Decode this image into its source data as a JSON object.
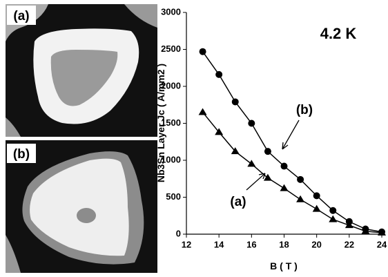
{
  "panels": [
    "(a)",
    "(b)"
  ],
  "chart_data": {
    "type": "line",
    "x_label": "B ( T )",
    "y_label": "Nb3Sn Layer Jc ( A/mm2 )",
    "annotations": [
      "4.2 K",
      "(b)",
      "(a)"
    ],
    "xlim": [
      12,
      24
    ],
    "xticks": [
      12,
      14,
      16,
      18,
      20,
      22,
      24
    ],
    "ylim": [
      0,
      3000
    ],
    "yticks": [
      0,
      500,
      1000,
      1500,
      2000,
      2500,
      3000
    ],
    "x": [
      13,
      14,
      15,
      16,
      17,
      18,
      19,
      20,
      21,
      22,
      23,
      24
    ],
    "series": [
      {
        "name": "(b)",
        "color": "#000000",
        "marker": "circle",
        "values": [
          2470,
          2160,
          1790,
          1500,
          1120,
          920,
          740,
          520,
          320,
          170,
          70,
          30
        ]
      },
      {
        "name": "(a)",
        "color": "#000000",
        "marker": "triangle",
        "values": [
          1650,
          1380,
          1120,
          950,
          760,
          620,
          470,
          340,
          200,
          120,
          40,
          20
        ]
      }
    ]
  }
}
